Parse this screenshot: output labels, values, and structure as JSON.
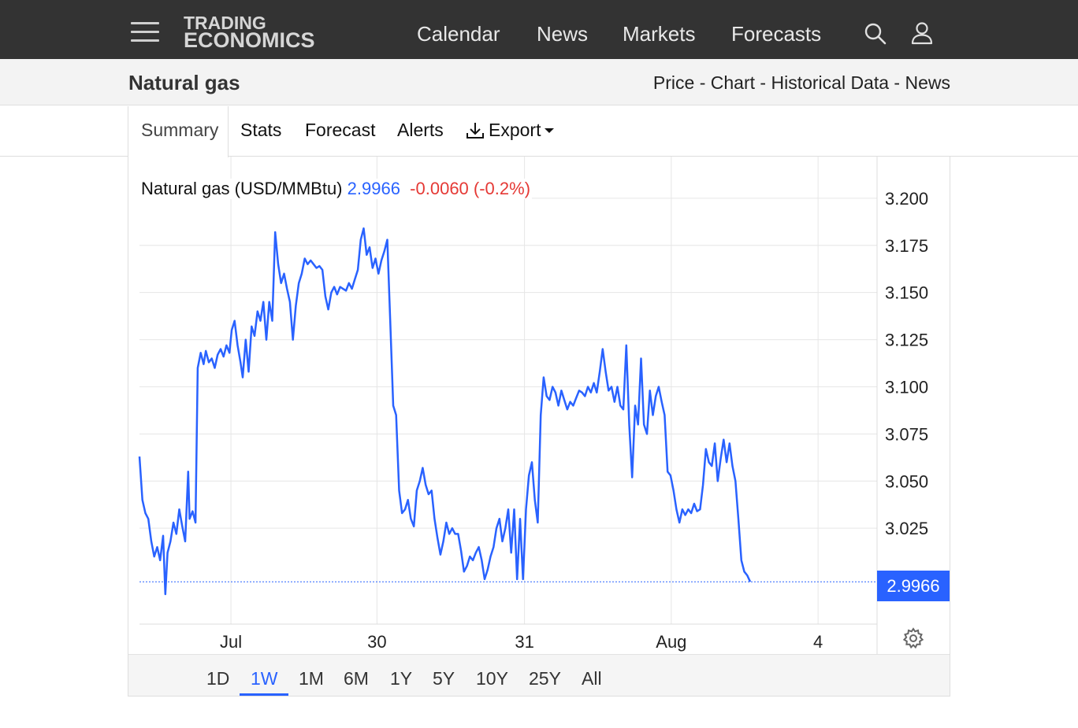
{
  "header": {
    "logo_line1": "TRADING",
    "logo_line2": "ECONOMICS",
    "nav": [
      "Calendar",
      "News",
      "Markets",
      "Forecasts"
    ]
  },
  "titlebar": {
    "title": "Natural gas",
    "links": [
      "Price",
      "Chart",
      "Historical Data",
      "News"
    ]
  },
  "tabs": {
    "items": [
      "Summary",
      "Stats",
      "Forecast",
      "Alerts",
      "Export"
    ],
    "active": "Summary"
  },
  "legend": {
    "name": "Natural gas (USD/MMBtu)",
    "price": "2.9966",
    "change": "-0.0060 (-0.2%)"
  },
  "last_price_badge": "2.9966",
  "ranges": {
    "items": [
      "1D",
      "1W",
      "1M",
      "6M",
      "1Y",
      "5Y",
      "10Y",
      "25Y",
      "All"
    ],
    "active": "1W"
  },
  "colors": {
    "line": "#2962ff",
    "change_negative": "#e53935",
    "topbar": "#333333"
  },
  "chart_data": {
    "type": "line",
    "title": "",
    "xlabel": "",
    "ylabel": "",
    "ylim": [
      2.98,
      3.225
    ],
    "y_ticks": [
      3.025,
      3.05,
      3.075,
      3.1,
      3.125,
      3.15,
      3.175,
      3.2
    ],
    "y_tick_labels": [
      "3.025",
      "3.050",
      "3.075",
      "3.100",
      "3.125",
      "3.150",
      "3.175",
      "3.200"
    ],
    "x_tick_labels": [
      "Jul",
      "30",
      "31",
      "Aug",
      "4"
    ],
    "x_tick_positions": [
      0.124,
      0.322,
      0.522,
      0.721,
      0.92
    ],
    "grid": true,
    "last_value": 2.9966,
    "series": [
      {
        "values": [
          [
            0.0,
            3.063
          ],
          [
            0.004,
            3.04
          ],
          [
            0.008,
            3.033
          ],
          [
            0.012,
            3.03
          ],
          [
            0.016,
            3.018
          ],
          [
            0.02,
            3.01
          ],
          [
            0.024,
            3.015
          ],
          [
            0.028,
            3.008
          ],
          [
            0.032,
            3.021
          ],
          [
            0.035,
            2.99
          ],
          [
            0.038,
            3.012
          ],
          [
            0.042,
            3.018
          ],
          [
            0.046,
            3.028
          ],
          [
            0.05,
            3.022
          ],
          [
            0.054,
            3.035
          ],
          [
            0.058,
            3.026
          ],
          [
            0.062,
            3.018
          ],
          [
            0.066,
            3.055
          ],
          [
            0.068,
            3.03
          ],
          [
            0.072,
            3.034
          ],
          [
            0.076,
            3.028
          ],
          [
            0.079,
            3.11
          ],
          [
            0.083,
            3.118
          ],
          [
            0.087,
            3.112
          ],
          [
            0.09,
            3.119
          ],
          [
            0.094,
            3.113
          ],
          [
            0.098,
            3.115
          ],
          [
            0.102,
            3.11
          ],
          [
            0.106,
            3.117
          ],
          [
            0.11,
            3.12
          ],
          [
            0.114,
            3.116
          ],
          [
            0.118,
            3.122
          ],
          [
            0.122,
            3.118
          ],
          [
            0.125,
            3.13
          ],
          [
            0.129,
            3.135
          ],
          [
            0.133,
            3.122
          ],
          [
            0.137,
            3.113
          ],
          [
            0.14,
            3.105
          ],
          [
            0.144,
            3.125
          ],
          [
            0.148,
            3.108
          ],
          [
            0.152,
            3.132
          ],
          [
            0.156,
            3.127
          ],
          [
            0.16,
            3.14
          ],
          [
            0.164,
            3.135
          ],
          [
            0.168,
            3.145
          ],
          [
            0.172,
            3.125
          ],
          [
            0.176,
            3.145
          ],
          [
            0.18,
            3.135
          ],
          [
            0.184,
            3.182
          ],
          [
            0.188,
            3.165
          ],
          [
            0.192,
            3.155
          ],
          [
            0.196,
            3.16
          ],
          [
            0.2,
            3.152
          ],
          [
            0.204,
            3.145
          ],
          [
            0.208,
            3.125
          ],
          [
            0.212,
            3.143
          ],
          [
            0.216,
            3.155
          ],
          [
            0.22,
            3.16
          ],
          [
            0.224,
            3.168
          ],
          [
            0.228,
            3.165
          ],
          [
            0.232,
            3.167
          ],
          [
            0.236,
            3.165
          ],
          [
            0.24,
            3.163
          ],
          [
            0.244,
            3.164
          ],
          [
            0.248,
            3.162
          ],
          [
            0.252,
            3.148
          ],
          [
            0.256,
            3.141
          ],
          [
            0.26,
            3.15
          ],
          [
            0.264,
            3.153
          ],
          [
            0.268,
            3.149
          ],
          [
            0.272,
            3.153
          ],
          [
            0.276,
            3.152
          ],
          [
            0.28,
            3.151
          ],
          [
            0.284,
            3.155
          ],
          [
            0.288,
            3.152
          ],
          [
            0.292,
            3.157
          ],
          [
            0.296,
            3.162
          ],
          [
            0.3,
            3.178
          ],
          [
            0.304,
            3.184
          ],
          [
            0.308,
            3.17
          ],
          [
            0.312,
            3.174
          ],
          [
            0.316,
            3.163
          ],
          [
            0.32,
            3.168
          ],
          [
            0.324,
            3.16
          ],
          [
            0.328,
            3.167
          ],
          [
            0.332,
            3.172
          ],
          [
            0.336,
            3.178
          ],
          [
            0.34,
            3.135
          ],
          [
            0.344,
            3.09
          ],
          [
            0.348,
            3.085
          ],
          [
            0.352,
            3.045
          ],
          [
            0.356,
            3.033
          ],
          [
            0.36,
            3.035
          ],
          [
            0.364,
            3.04
          ],
          [
            0.368,
            3.03
          ],
          [
            0.372,
            3.026
          ],
          [
            0.376,
            3.045
          ],
          [
            0.38,
            3.05
          ],
          [
            0.384,
            3.057
          ],
          [
            0.388,
            3.048
          ],
          [
            0.392,
            3.043
          ],
          [
            0.396,
            3.045
          ],
          [
            0.4,
            3.03
          ],
          [
            0.404,
            3.02
          ],
          [
            0.408,
            3.011
          ],
          [
            0.412,
            3.018
          ],
          [
            0.416,
            3.028
          ],
          [
            0.42,
            3.022
          ],
          [
            0.424,
            3.025
          ],
          [
            0.428,
            3.022
          ],
          [
            0.432,
            3.022
          ],
          [
            0.436,
            3.013
          ],
          [
            0.44,
            3.002
          ],
          [
            0.444,
            3.005
          ],
          [
            0.448,
            3.01
          ],
          [
            0.452,
            3.008
          ],
          [
            0.456,
            3.012
          ],
          [
            0.46,
            3.015
          ],
          [
            0.464,
            3.008
          ],
          [
            0.468,
            2.998
          ],
          [
            0.472,
            3.003
          ],
          [
            0.476,
            3.01
          ],
          [
            0.48,
            3.015
          ],
          [
            0.484,
            3.025
          ],
          [
            0.488,
            3.03
          ],
          [
            0.492,
            3.018
          ],
          [
            0.496,
            3.025
          ],
          [
            0.5,
            3.035
          ],
          [
            0.504,
            3.012
          ],
          [
            0.508,
            3.035
          ],
          [
            0.512,
            2.998
          ],
          [
            0.516,
            3.03
          ],
          [
            0.52,
            2.998
          ],
          [
            0.524,
            3.035
          ],
          [
            0.528,
            3.053
          ],
          [
            0.532,
            3.06
          ],
          [
            0.536,
            3.04
          ],
          [
            0.54,
            3.028
          ],
          [
            0.544,
            3.085
          ],
          [
            0.548,
            3.105
          ],
          [
            0.552,
            3.095
          ],
          [
            0.556,
            3.093
          ],
          [
            0.56,
            3.1
          ],
          [
            0.564,
            3.097
          ],
          [
            0.568,
            3.09
          ],
          [
            0.572,
            3.098
          ],
          [
            0.576,
            3.093
          ],
          [
            0.58,
            3.088
          ],
          [
            0.584,
            3.092
          ],
          [
            0.588,
            3.09
          ],
          [
            0.592,
            3.094
          ],
          [
            0.596,
            3.098
          ],
          [
            0.6,
            3.097
          ],
          [
            0.604,
            3.095
          ],
          [
            0.608,
            3.1
          ],
          [
            0.612,
            3.097
          ],
          [
            0.616,
            3.102
          ],
          [
            0.62,
            3.097
          ],
          [
            0.624,
            3.108
          ],
          [
            0.628,
            3.12
          ],
          [
            0.632,
            3.108
          ],
          [
            0.636,
            3.098
          ],
          [
            0.64,
            3.1
          ],
          [
            0.644,
            3.092
          ],
          [
            0.648,
            3.1
          ],
          [
            0.652,
            3.09
          ],
          [
            0.656,
            3.088
          ],
          [
            0.66,
            3.122
          ],
          [
            0.664,
            3.08
          ],
          [
            0.668,
            3.052
          ],
          [
            0.672,
            3.09
          ],
          [
            0.676,
            3.08
          ],
          [
            0.68,
            3.115
          ],
          [
            0.684,
            3.08
          ],
          [
            0.688,
            3.075
          ],
          [
            0.692,
            3.098
          ],
          [
            0.696,
            3.085
          ],
          [
            0.7,
            3.095
          ],
          [
            0.704,
            3.1
          ],
          [
            0.708,
            3.092
          ],
          [
            0.712,
            3.085
          ],
          [
            0.716,
            3.055
          ],
          [
            0.72,
            3.053
          ],
          [
            0.724,
            3.045
          ],
          [
            0.728,
            3.035
          ],
          [
            0.732,
            3.028
          ],
          [
            0.736,
            3.035
          ],
          [
            0.74,
            3.032
          ],
          [
            0.744,
            3.035
          ],
          [
            0.748,
            3.033
          ],
          [
            0.752,
            3.038
          ],
          [
            0.756,
            3.034
          ],
          [
            0.76,
            3.035
          ],
          [
            0.764,
            3.048
          ],
          [
            0.768,
            3.067
          ],
          [
            0.772,
            3.06
          ],
          [
            0.776,
            3.058
          ],
          [
            0.78,
            3.07
          ],
          [
            0.784,
            3.05
          ],
          [
            0.788,
            3.062
          ],
          [
            0.792,
            3.072
          ],
          [
            0.796,
            3.06
          ],
          [
            0.8,
            3.07
          ],
          [
            0.804,
            3.058
          ],
          [
            0.808,
            3.05
          ],
          [
            0.812,
            3.03
          ],
          [
            0.816,
            3.008
          ],
          [
            0.82,
            3.002
          ],
          [
            0.824,
            3.0
          ],
          [
            0.828,
            2.9966
          ]
        ]
      }
    ]
  }
}
